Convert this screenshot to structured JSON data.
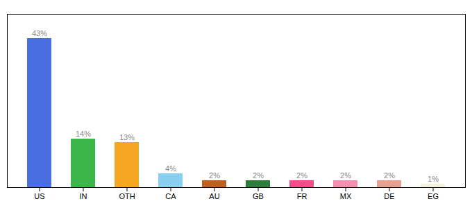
{
  "chart_data": {
    "type": "bar",
    "categories": [
      "US",
      "IN",
      "OTH",
      "CA",
      "AU",
      "GB",
      "FR",
      "MX",
      "DE",
      "EG"
    ],
    "values": [
      43,
      14,
      13,
      4,
      2,
      2,
      2,
      2,
      2,
      1
    ],
    "value_labels": [
      "43%",
      "14%",
      "13%",
      "4%",
      "2%",
      "2%",
      "2%",
      "2%",
      "2%",
      "1%"
    ],
    "colors": [
      "#4A6FE3",
      "#3CB54A",
      "#F5A623",
      "#89CFF0",
      "#C06020",
      "#2E7D3C",
      "#F0508A",
      "#F48FB1",
      "#E8A090",
      "#F5F2DC"
    ],
    "ylim": [
      0,
      50
    ],
    "data_labels": true,
    "tick_labels": "x",
    "grid": false
  }
}
